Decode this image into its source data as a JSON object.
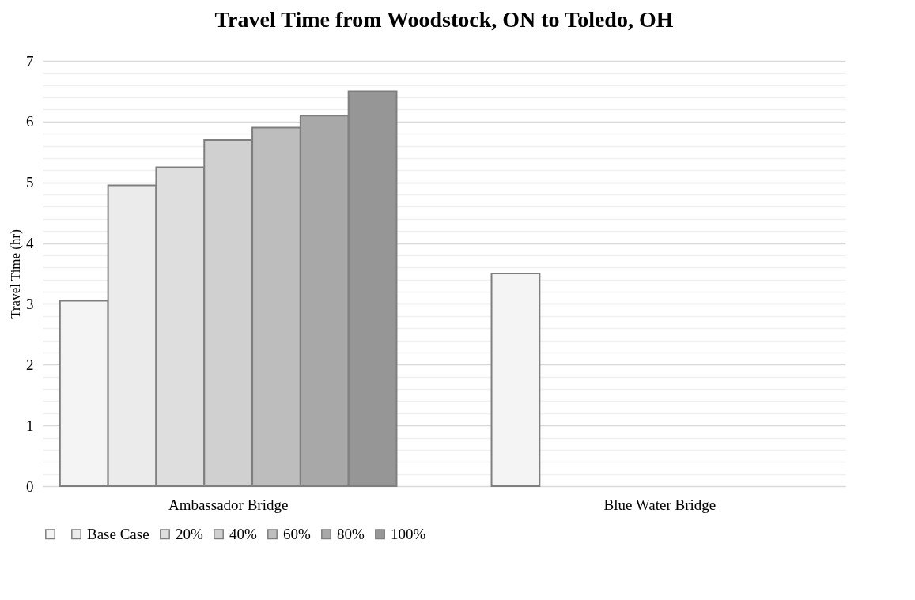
{
  "chart_data": {
    "type": "bar",
    "title": "Travel Time from Woodstock, ON to Toledo, OH",
    "ylabel": "Travel Time (hr)",
    "categories": [
      "Ambassador Bridge",
      "Blue Water Bridge"
    ],
    "series": [
      {
        "color": "#f4f4f4",
        "values": [
          3.05,
          3.5
        ]
      },
      {
        "name": "Base Case",
        "color": "#ebebeb",
        "values": [
          4.95,
          null
        ]
      },
      {
        "name": "20%",
        "color": "#dedede",
        "values": [
          5.25,
          null
        ]
      },
      {
        "name": "40%",
        "color": "#d0d0d0",
        "values": [
          5.7,
          null
        ]
      },
      {
        "name": "60%",
        "color": "#bdbdbd",
        "values": [
          5.9,
          null
        ]
      },
      {
        "name": "80%",
        "color": "#a8a8a8",
        "values": [
          6.1,
          null
        ]
      },
      {
        "name": "100%",
        "color": "#969696",
        "values": [
          6.5,
          null
        ]
      }
    ],
    "ylim": [
      0,
      7
    ],
    "yticks": [
      0,
      {
        "value": 0.2,
        "label": null
      },
      {
        "value": 0.4,
        "label": null
      },
      {
        "value": 0.6,
        "label": null
      },
      {
        "value": 0.8,
        "label": null
      },
      1,
      {
        "value": 1.2,
        "label": null
      },
      {
        "value": 1.4,
        "label": null
      },
      {
        "value": 1.6,
        "label": null
      },
      {
        "value": 1.8,
        "label": null
      },
      2,
      {
        "value": 2.2,
        "label": null
      },
      {
        "value": 2.4,
        "label": null
      },
      {
        "value": 2.6,
        "label": null
      },
      {
        "value": 2.8,
        "label": null
      },
      3,
      {
        "value": 3.2,
        "label": null
      },
      {
        "value": 3.4,
        "label": null
      },
      {
        "value": 3.6,
        "label": null
      },
      {
        "value": 3.8,
        "label": null
      },
      4,
      {
        "value": 4.2,
        "label": null
      },
      {
        "value": 4.4,
        "label": null
      },
      {
        "value": 4.6,
        "label": null
      },
      {
        "value": 4.8,
        "label": null
      },
      5,
      {
        "value": 5.2,
        "label": null
      },
      {
        "value": 5.4,
        "label": null
      },
      {
        "value": 5.6,
        "label": null
      },
      {
        "value": 5.8,
        "label": null
      },
      6,
      {
        "value": 6.2,
        "label": null
      },
      {
        "value": 6.4,
        "label": null
      },
      {
        "value": 6.6,
        "label": null
      },
      {
        "value": 6.8,
        "label": null
      },
      7
    ],
    "grid": "y",
    "legend": "bottom"
  }
}
